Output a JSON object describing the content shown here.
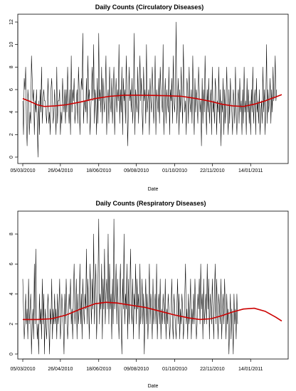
{
  "chart_data": [
    {
      "type": "line",
      "title": "Daily Counts (Circulatory Diseases)",
      "xlabel": "Date",
      "ylabel": "",
      "x_tick_labels": [
        "05/03/2010",
        "26/04/2010",
        "18/06/2010",
        "09/08/2010",
        "01/10/2010",
        "22/11/2010",
        "14/01/2011"
      ],
      "x_tick_days": [
        0,
        52,
        105,
        157,
        210,
        262,
        315
      ],
      "xlim_days": [
        0,
        360
      ],
      "y_ticks": [
        0,
        2,
        4,
        6,
        8,
        10,
        12
      ],
      "ylim": [
        0,
        12
      ],
      "series": [
        {
          "style": "raw",
          "color": "#000000",
          "values": [
            5,
            2,
            7,
            6,
            8,
            3,
            1,
            6,
            5,
            2,
            4,
            3,
            9,
            7,
            5,
            6,
            2,
            5,
            4,
            6,
            3,
            0,
            5,
            2,
            6,
            4,
            8,
            3,
            5,
            6,
            5,
            5,
            4,
            3,
            5,
            7,
            3,
            4,
            2,
            6,
            7,
            5,
            3,
            4,
            6,
            4,
            2,
            8,
            3,
            5,
            5,
            6,
            2,
            4,
            3,
            7,
            5,
            4,
            6,
            3,
            6,
            4,
            8,
            5,
            3,
            6,
            2,
            9,
            4,
            6,
            5,
            7,
            3,
            4,
            5,
            6,
            3,
            8,
            6,
            2,
            5,
            7,
            6,
            11,
            3,
            5,
            5,
            4,
            7,
            3,
            9,
            5,
            6,
            2,
            4,
            6,
            8,
            5,
            10,
            3,
            6,
            5,
            2,
            7,
            3,
            11,
            5,
            6,
            4,
            8,
            3,
            7,
            5,
            4,
            6,
            9,
            2,
            5,
            6,
            3,
            8,
            5,
            4,
            7,
            3,
            6,
            8,
            2,
            5,
            7,
            4,
            6,
            5,
            10,
            3,
            6,
            4,
            8,
            2,
            7,
            5,
            6,
            3,
            9,
            6,
            1,
            4,
            8,
            5,
            6,
            4,
            7,
            3,
            5,
            11,
            2,
            6,
            5,
            4,
            8,
            3,
            6,
            9,
            5,
            7,
            4,
            2,
            8,
            5,
            6,
            3,
            10,
            4,
            5,
            6,
            2,
            7,
            5,
            4,
            8,
            6,
            3,
            5,
            9,
            2,
            6,
            5,
            4,
            7,
            3,
            8,
            6,
            5,
            4,
            10,
            2,
            5,
            7,
            3,
            6,
            5,
            4,
            8,
            2,
            6,
            5,
            7,
            3,
            9,
            5,
            4,
            6,
            12,
            3,
            5,
            7,
            2,
            6,
            4,
            8,
            5,
            3,
            10,
            6,
            4,
            5,
            2,
            7,
            6,
            3,
            8,
            5,
            4,
            6,
            3,
            9,
            5,
            2,
            7,
            4,
            6,
            5,
            3,
            8,
            6,
            4,
            5,
            1,
            7,
            3,
            6,
            4,
            9,
            5,
            2,
            6,
            4,
            7,
            3,
            5,
            6,
            2,
            8,
            4,
            5,
            3,
            7,
            6,
            2,
            5,
            4,
            8,
            3,
            6,
            1,
            5,
            4,
            7,
            2,
            6,
            3,
            5,
            8,
            4,
            2,
            6,
            3,
            7,
            5,
            4,
            2,
            6,
            5,
            3,
            8,
            4,
            2,
            5,
            6,
            3,
            7,
            4,
            5,
            2,
            6,
            3,
            8,
            4,
            5,
            2,
            7,
            4,
            6,
            3,
            5,
            2,
            6,
            4,
            8,
            3,
            5,
            6,
            2,
            7,
            4,
            5,
            3,
            6,
            2,
            4,
            5,
            3,
            8,
            4,
            6,
            2,
            5,
            10,
            3,
            6,
            4,
            5,
            7,
            3,
            6,
            4,
            8,
            5,
            6,
            9,
            5,
            6
          ]
        },
        {
          "style": "smooth",
          "color": "#cc0000",
          "points": [
            [
              0,
              5.2
            ],
            [
              10,
              4.95
            ],
            [
              20,
              4.65
            ],
            [
              30,
              4.5
            ],
            [
              45,
              4.55
            ],
            [
              60,
              4.65
            ],
            [
              80,
              4.9
            ],
            [
              100,
              5.2
            ],
            [
              120,
              5.4
            ],
            [
              140,
              5.5
            ],
            [
              160,
              5.5
            ],
            [
              180,
              5.48
            ],
            [
              200,
              5.45
            ],
            [
              220,
              5.4
            ],
            [
              240,
              5.2
            ],
            [
              260,
              4.95
            ],
            [
              275,
              4.7
            ],
            [
              290,
              4.55
            ],
            [
              305,
              4.5
            ],
            [
              320,
              4.7
            ],
            [
              335,
              5.0
            ],
            [
              350,
              5.35
            ],
            [
              358,
              5.55
            ]
          ]
        }
      ]
    },
    {
      "type": "line",
      "title": "Daily Counts (Respiratory Diseases)",
      "xlabel": "Date",
      "ylabel": "",
      "x_tick_labels": [
        "05/03/2010",
        "26/04/2010",
        "18/06/2010",
        "09/08/2010",
        "01/10/2010",
        "22/11/2010",
        "14/01/2011"
      ],
      "x_tick_days": [
        0,
        52,
        105,
        157,
        210,
        262,
        315
      ],
      "xlim_days": [
        0,
        360
      ],
      "y_ticks": [
        0,
        2,
        4,
        6,
        8
      ],
      "ylim": [
        0,
        9
      ],
      "series": [
        {
          "style": "raw",
          "color": "#000000",
          "values": [
            5,
            3,
            1,
            2,
            4,
            2,
            3,
            1,
            5,
            2,
            3,
            4,
            0,
            2,
            3,
            1,
            6,
            2,
            7,
            3,
            1,
            2,
            0,
            4,
            2,
            3,
            1,
            5,
            2,
            4,
            0,
            3,
            2,
            1,
            3,
            4,
            2,
            0,
            3,
            2,
            5,
            1,
            3,
            2,
            4,
            2,
            3,
            1,
            4,
            2,
            3,
            5,
            1,
            2,
            4,
            3,
            2,
            0,
            4,
            2,
            5,
            3,
            1,
            2,
            4,
            3,
            5,
            2,
            3,
            1,
            4,
            6,
            2,
            3,
            5,
            1,
            4,
            2,
            3,
            6,
            2,
            4,
            1,
            5,
            3,
            2,
            4,
            3,
            7,
            2,
            5,
            3,
            1,
            6,
            4,
            2,
            5,
            3,
            8,
            2,
            4,
            6,
            1,
            3,
            5,
            9,
            2,
            4,
            3,
            6,
            1,
            5,
            3,
            7,
            2,
            4,
            5,
            3,
            8,
            2,
            6,
            3,
            4,
            1,
            5,
            2,
            9,
            3,
            4,
            6,
            2,
            5,
            3,
            1,
            4,
            6,
            2,
            0,
            5,
            3,
            8,
            2,
            4,
            3,
            6,
            1,
            5,
            2,
            4,
            7,
            3,
            2,
            5,
            1,
            4,
            3,
            6,
            2,
            5,
            3,
            4,
            1,
            6,
            2,
            3,
            5,
            2,
            4,
            0,
            3,
            5,
            2,
            4,
            1,
            3,
            6,
            2,
            4,
            3,
            1,
            5,
            2,
            3,
            4,
            2,
            6,
            1,
            3,
            4,
            2,
            5,
            1,
            3,
            2,
            4,
            3,
            2,
            5,
            1,
            3,
            2,
            4,
            3,
            1,
            2,
            3,
            5,
            2,
            1,
            4,
            3,
            2,
            1,
            3,
            5,
            2,
            4,
            1,
            3,
            2,
            4,
            3,
            1,
            2,
            4,
            6,
            2,
            3,
            1,
            4,
            2,
            3,
            5,
            1,
            3,
            2,
            4,
            2,
            5,
            3,
            1,
            2,
            4,
            3,
            5,
            2,
            6,
            3,
            4,
            1,
            5,
            2,
            3,
            4,
            2,
            6,
            3,
            5,
            1,
            4,
            3,
            2,
            5,
            3,
            1,
            4,
            6,
            2,
            5,
            3,
            1,
            4,
            3,
            2,
            5,
            1,
            3,
            4,
            2,
            5,
            3,
            1,
            4,
            2,
            3,
            0,
            2,
            4,
            1,
            3,
            2,
            0,
            4,
            2,
            3,
            1,
            4,
            2
          ]
        },
        {
          "style": "smooth",
          "color": "#cc0000",
          "points": [
            [
              0,
              2.3
            ],
            [
              20,
              2.3
            ],
            [
              40,
              2.35
            ],
            [
              60,
              2.6
            ],
            [
              80,
              3.0
            ],
            [
              100,
              3.35
            ],
            [
              115,
              3.45
            ],
            [
              130,
              3.4
            ],
            [
              150,
              3.25
            ],
            [
              170,
              3.1
            ],
            [
              190,
              2.85
            ],
            [
              210,
              2.6
            ],
            [
              230,
              2.4
            ],
            [
              245,
              2.3
            ],
            [
              260,
              2.35
            ],
            [
              275,
              2.55
            ],
            [
              290,
              2.8
            ],
            [
              305,
              3.0
            ],
            [
              320,
              3.05
            ],
            [
              335,
              2.85
            ],
            [
              350,
              2.45
            ],
            [
              358,
              2.2
            ]
          ]
        }
      ]
    }
  ]
}
